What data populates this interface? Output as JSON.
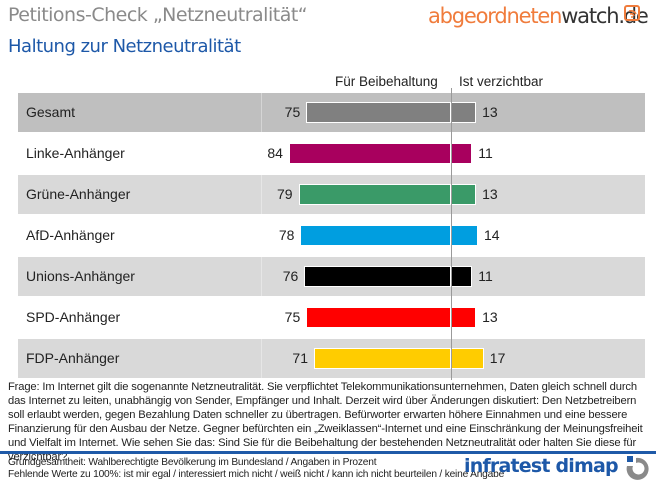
{
  "header": {
    "title": "Petitions-Check „Netzneutralität“",
    "subtitle": "Haltung zur Netzneutralität",
    "logo_part1": "abgeordneten",
    "logo_part2": "watch.de",
    "logo_color": "#f07c3c"
  },
  "chart_data": {
    "type": "bar",
    "orientation": "horizontal-diverging",
    "title": "Haltung zur Netzneutralität",
    "categories": [
      "Gesamt",
      "Linke-Anhänger",
      "Grüne-Anhänger",
      "AfD-Anhänger",
      "Unions-Anhänger",
      "SPD-Anhänger",
      "FDP-Anhänger"
    ],
    "series": [
      {
        "name": "Für Beibehaltung",
        "values": [
          75,
          84,
          79,
          78,
          76,
          75,
          71
        ]
      },
      {
        "name": "Ist verzichtbar",
        "values": [
          13,
          11,
          13,
          14,
          11,
          13,
          17
        ]
      }
    ],
    "colors": [
      "#808080",
      "#a8005e",
      "#3a9a68",
      "#009ee0",
      "#000000",
      "#ff0000",
      "#ffcc00"
    ],
    "unit": "Prozent",
    "xlabel": "",
    "ylabel": ""
  },
  "question": "Frage: Im Internet gilt die sogenannte Netzneutralität. Sie verpflichtet Telekommunikationsunternehmen, Daten gleich schnell durch das Internet zu leiten, unabhängig von Sender, Empfänger und Inhalt. Derzeit wird über Änderungen diskutiert: Den Netzbetreibern soll erlaubt werden, gegen Bezahlung Daten schneller zu übertragen. Befürworter erwarten höhere Einnahmen und eine bessere Finanzierung für den Ausbau der Netze. Gegner befürchten ein „Zweiklassen“-Internet und eine Einschränkung der Meinungsfreiheit und Vielfalt im Internet. Wie sehen Sie das: Sind Sie für die Beibehaltung der bestehenden Netzneutralität oder halten Sie diese für verzichtbar?",
  "footer": {
    "line1": "Grundgesamtheit: Wahlberechtigte Bevölkerung im Bundesland / Angaben in Prozent",
    "line2": "Fehlende Werte zu 100%: ist mir egal / interessiert mich nicht / weiß nicht / kann ich nicht beurteilen / keine Angabe",
    "logo": "infratest dimap",
    "accent_color": "#1f5aa8"
  }
}
